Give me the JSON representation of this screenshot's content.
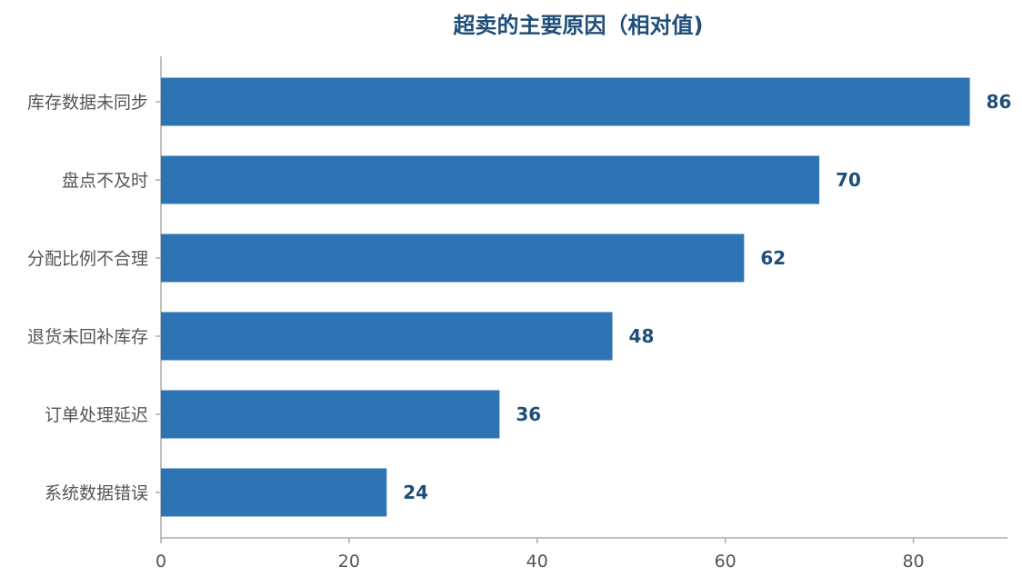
{
  "chart_data": {
    "type": "bar",
    "orientation": "horizontal",
    "title": "超卖的主要原因（相对值)",
    "xlabel": "",
    "ylabel": "",
    "categories": [
      "库存数据未同步",
      "盘点不及时",
      "分配比例不合理",
      "退货未回补库存",
      "订单处理延迟",
      "系统数据错误"
    ],
    "values": [
      86,
      70,
      62,
      48,
      36,
      24
    ],
    "xlim": [
      0,
      90
    ],
    "x_ticks": [
      0,
      20,
      40,
      60,
      80
    ],
    "grid": false,
    "legend": "none",
    "data_labels": true
  },
  "colors": {
    "bar": "#2e74b5",
    "title": "#1f4e79",
    "data_label": "#1f4e79",
    "axis_text": "#555555",
    "axis_line": "#aaaaaa"
  }
}
